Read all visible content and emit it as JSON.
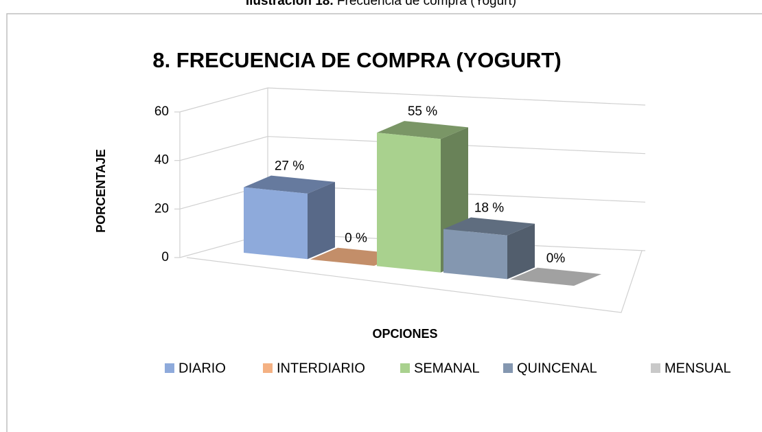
{
  "caption": {
    "label": "Ilustración 18.",
    "text": "Frecuencia de compra (Yogurt)"
  },
  "chart_data": {
    "type": "bar3d",
    "title": "8. FRECUENCIA DE COMPRA (YOGURT)",
    "x_label": "OPCIONES",
    "y_label": "PORCENTAJE",
    "categories": [
      "DIARIO",
      "INTERDIARIO",
      "SEMANAL",
      "QUINCENAL",
      "MENSUAL"
    ],
    "values": [
      27,
      0,
      55,
      18,
      0
    ],
    "value_labels": [
      "27 %",
      "0 %",
      "55 %",
      "18 %",
      "0%"
    ],
    "colors": [
      "#8eaadb",
      "#f4b183",
      "#a9d18e",
      "#8497b0",
      "#c9c9c9"
    ],
    "ylim": [
      0,
      60
    ],
    "yticks": [
      0,
      20,
      40,
      60
    ],
    "grid": true,
    "legend": "bottom"
  }
}
